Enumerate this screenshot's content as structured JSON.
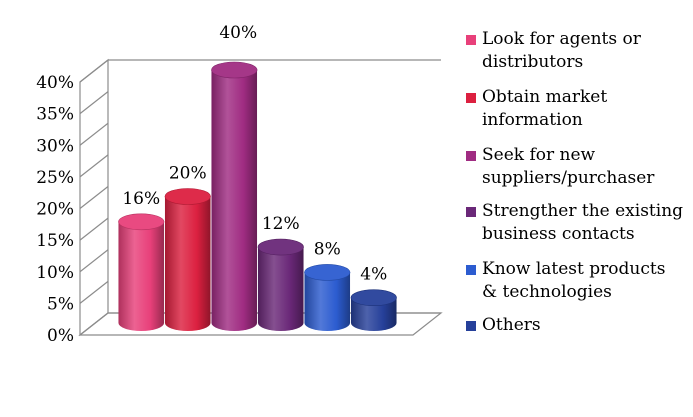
{
  "chart_data": {
    "type": "bar",
    "categories": [
      "Look for agents or\ndistributors",
      "Obtain market\ninformation",
      "Seek for new\nsuppliers/purchaser",
      "Strengther the existing\nbusiness contacts",
      "Know latest products\n& technologies",
      "Others"
    ],
    "values": [
      16,
      20,
      40,
      12,
      8,
      4
    ],
    "data_labels": [
      "16%",
      "20%",
      "40%",
      "12%",
      "8%",
      "4%"
    ],
    "ytick_labels": [
      "0%",
      "5%",
      "10%",
      "15%",
      "20%",
      "25%",
      "30%",
      "35%",
      "40%"
    ],
    "ylim": [
      0,
      40
    ],
    "colors": [
      "#e8407a",
      "#dc2040",
      "#a02c82",
      "#6a2878",
      "#2c5cd0",
      "#26409a"
    ],
    "legend": "right",
    "grid": false
  }
}
